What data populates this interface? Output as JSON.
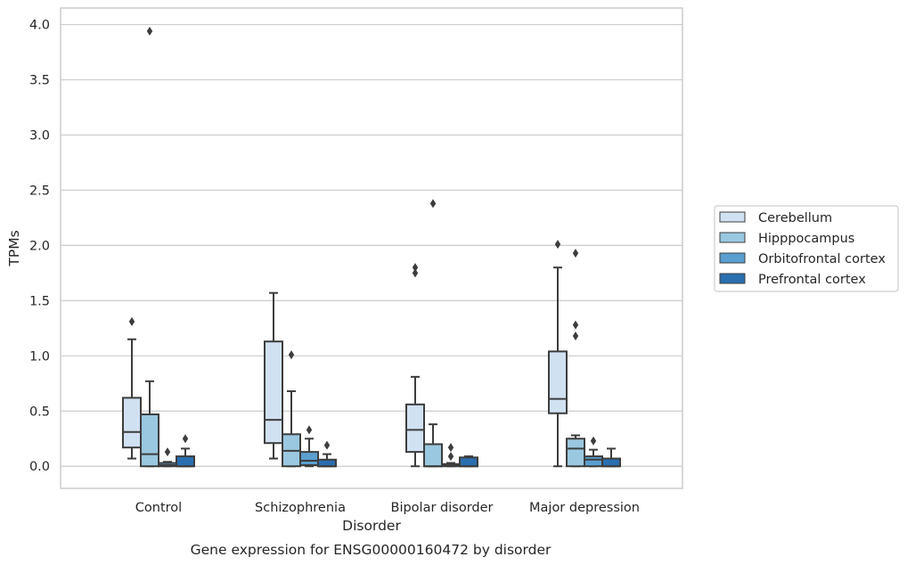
{
  "chart_data": {
    "type": "box",
    "xlabel": "Disorder",
    "ylabel": "TPMs",
    "caption": "Gene expression for ENSG00000160472 by disorder",
    "ylim": [
      -0.2,
      4.15
    ],
    "yticks": [
      0.0,
      0.5,
      1.0,
      1.5,
      2.0,
      2.5,
      3.0,
      3.5,
      4.0
    ],
    "ytick_labels": [
      "0.0",
      "0.5",
      "1.0",
      "1.5",
      "2.0",
      "2.5",
      "3.0",
      "3.5",
      "4.0"
    ],
    "grid": "horizontal",
    "legend_position": "right",
    "categories": [
      "Control",
      "Schizophrenia",
      "Bipolar disorder",
      "Major depression"
    ],
    "series": [
      {
        "name": "Cerebellum",
        "color": "#d0e1f2",
        "boxes": [
          {
            "whislo": 0.07,
            "q1": 0.17,
            "med": 0.31,
            "q3": 0.62,
            "whishi": 1.15,
            "fliers": [
              1.31
            ]
          },
          {
            "whislo": 0.07,
            "q1": 0.21,
            "med": 0.42,
            "q3": 1.13,
            "whishi": 1.57,
            "fliers": []
          },
          {
            "whislo": 0.0,
            "q1": 0.13,
            "med": 0.33,
            "q3": 0.56,
            "whishi": 0.81,
            "fliers": [
              1.75,
              1.8
            ]
          },
          {
            "whislo": 0.0,
            "q1": 0.48,
            "med": 0.61,
            "q3": 1.04,
            "whishi": 1.8,
            "fliers": [
              2.01
            ]
          }
        ]
      },
      {
        "name": "Hipppocampus",
        "color": "#9ac8e0",
        "boxes": [
          {
            "whislo": 0.0,
            "q1": 0.0,
            "med": 0.11,
            "q3": 0.47,
            "whishi": 0.77,
            "fliers": [
              3.94
            ]
          },
          {
            "whislo": 0.0,
            "q1": 0.0,
            "med": 0.14,
            "q3": 0.29,
            "whishi": 0.68,
            "fliers": [
              1.01
            ]
          },
          {
            "whislo": 0.0,
            "q1": 0.0,
            "med": 0.0,
            "q3": 0.2,
            "whishi": 0.38,
            "fliers": [
              2.38
            ]
          },
          {
            "whislo": 0.0,
            "q1": 0.0,
            "med": 0.16,
            "q3": 0.25,
            "whishi": 0.28,
            "fliers": [
              1.18,
              1.28,
              1.93
            ]
          }
        ]
      },
      {
        "name": "Orbitofrontal cortex",
        "color": "#5a9fcf",
        "boxes": [
          {
            "whislo": 0.0,
            "q1": 0.0,
            "med": 0.01,
            "q3": 0.03,
            "whishi": 0.04,
            "fliers": [
              0.13
            ]
          },
          {
            "whislo": 0.0,
            "q1": 0.01,
            "med": 0.05,
            "q3": 0.13,
            "whishi": 0.25,
            "fliers": [
              0.33
            ]
          },
          {
            "whislo": 0.0,
            "q1": 0.0,
            "med": 0.01,
            "q3": 0.02,
            "whishi": 0.03,
            "fliers": [
              0.09,
              0.17
            ]
          },
          {
            "whislo": 0.0,
            "q1": 0.0,
            "med": 0.06,
            "q3": 0.09,
            "whishi": 0.15,
            "fliers": [
              0.23
            ]
          }
        ]
      },
      {
        "name": "Prefrontal cortex",
        "color": "#2a6fb0",
        "boxes": [
          {
            "whislo": 0.0,
            "q1": 0.0,
            "med": 0.0,
            "q3": 0.09,
            "whishi": 0.16,
            "fliers": [
              0.25
            ]
          },
          {
            "whislo": 0.0,
            "q1": 0.0,
            "med": 0.0,
            "q3": 0.06,
            "whishi": 0.11,
            "fliers": [
              0.19
            ]
          },
          {
            "whislo": 0.0,
            "q1": 0.0,
            "med": 0.0,
            "q3": 0.08,
            "whishi": 0.09,
            "fliers": []
          },
          {
            "whislo": 0.0,
            "q1": 0.0,
            "med": 0.0,
            "q3": 0.07,
            "whishi": 0.16,
            "fliers": []
          }
        ]
      }
    ]
  },
  "colors": {
    "grid": "#cccccc",
    "frame": "#cccccc",
    "line": "#3d3d3d",
    "text": "#262626"
  }
}
